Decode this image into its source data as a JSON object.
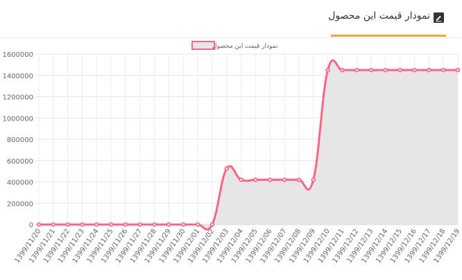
{
  "header": {
    "title": "نمودار قیمت این محصول",
    "icon": "edit-icon",
    "accent_color": "#f0a830"
  },
  "chart_data": {
    "type": "area",
    "legend": "نمودار قیمت این محصول",
    "legend_position": "top-center",
    "line_color": "#ff6384",
    "fill_color": "#e6e6e6",
    "grid": true,
    "ylim": [
      0,
      1600000
    ],
    "yticks": [
      0,
      200000,
      400000,
      600000,
      800000,
      1000000,
      1200000,
      1400000,
      1600000
    ],
    "x": [
      "1399/11/20",
      "1399/11/21",
      "1399/11/22",
      "1399/11/23",
      "1399/11/24",
      "1399/11/25",
      "1399/11/26",
      "1399/11/27",
      "1399/11/28",
      "1399/11/29",
      "1399/11/30",
      "1399/12/01",
      "1399/12/02",
      "1399/12/03",
      "1399/12/04",
      "1399/12/05",
      "1399/12/06",
      "1399/12/07",
      "1399/12/08",
      "1399/12/09",
      "1399/12/10",
      "1399/12/11",
      "1399/12/12",
      "1399/12/13",
      "1399/12/14",
      "1399/12/15",
      "1399/12/16",
      "1399/12/17",
      "1399/12/18",
      "1399/12/19"
    ],
    "series": [
      {
        "name": "نمودار قیمت این محصول",
        "values": [
          0,
          0,
          0,
          0,
          0,
          0,
          0,
          0,
          0,
          0,
          0,
          0,
          0,
          525000,
          420000,
          420000,
          420000,
          420000,
          420000,
          420000,
          1450000,
          1450000,
          1450000,
          1450000,
          1450000,
          1450000,
          1450000,
          1450000,
          1450000,
          1450000
        ]
      }
    ]
  }
}
